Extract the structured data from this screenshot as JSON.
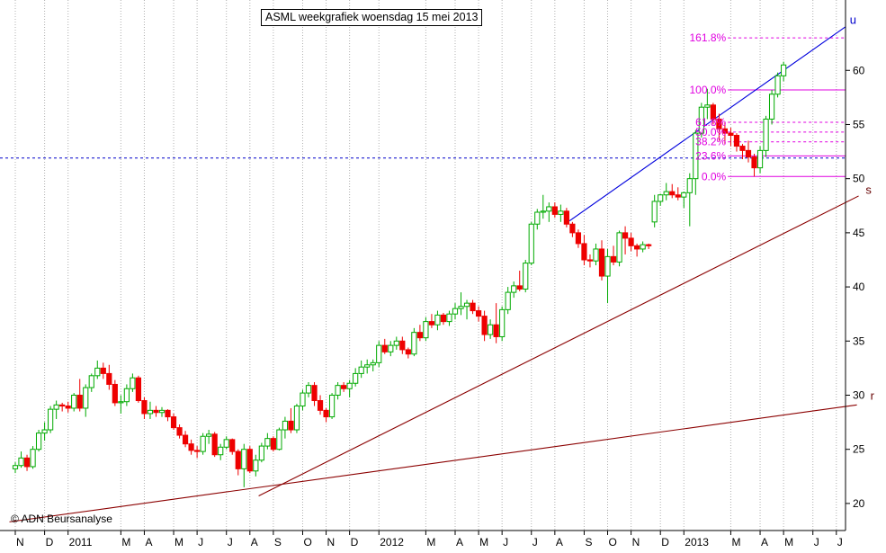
{
  "chart_data": {
    "type": "candlestick",
    "title": "ASML weekgrafiek woensdag 15 mei 2013",
    "copyright": "© ADN Beursanalyse",
    "ylim": [
      17.5,
      66.5
    ],
    "y_ticks": [
      20,
      25,
      30,
      35,
      40,
      45,
      50,
      55,
      60
    ],
    "x_ticks": [
      "N",
      "D",
      "2011",
      "M",
      "A",
      "M",
      "J",
      "J",
      "A",
      "S",
      "O",
      "N",
      "D",
      "2012",
      "M",
      "A",
      "M",
      "J",
      "J",
      "A",
      "S",
      "O",
      "N",
      "D",
      "2013",
      "M",
      "A",
      "M",
      "J",
      "J"
    ],
    "x_tick_weeks": [
      0,
      5,
      9,
      18,
      22,
      27,
      31,
      36,
      40,
      44,
      49,
      53,
      57,
      62,
      70,
      75,
      79,
      83,
      88,
      92,
      97,
      101,
      105,
      110,
      114,
      122,
      127,
      131,
      136,
      140
    ],
    "grid": true,
    "horizontal_level": 51.9,
    "up_color": "#00aa00",
    "down_color": "#ee0000",
    "candles_week_start": 0,
    "candles": [
      [
        23.2,
        23.8,
        22.8,
        23.5
      ],
      [
        23.5,
        24.8,
        23.3,
        24.2
      ],
      [
        24.2,
        24.5,
        23.0,
        23.4
      ],
      [
        23.4,
        25.3,
        23.2,
        25.0
      ],
      [
        25.0,
        26.8,
        24.8,
        26.5
      ],
      [
        26.5,
        27.5,
        25.8,
        26.8
      ],
      [
        26.8,
        29.0,
        26.5,
        28.7
      ],
      [
        28.7,
        29.5,
        27.8,
        29.1
      ],
      [
        29.1,
        29.3,
        28.5,
        29.0
      ],
      [
        29.0,
        29.4,
        28.4,
        28.8
      ],
      [
        28.8,
        30.2,
        28.5,
        30.0
      ],
      [
        30.0,
        31.5,
        28.5,
        28.8
      ],
      [
        28.8,
        31.0,
        28.0,
        30.7
      ],
      [
        30.7,
        32.0,
        30.3,
        31.8
      ],
      [
        31.8,
        33.2,
        31.5,
        32.5
      ],
      [
        32.5,
        33.0,
        31.5,
        32.0
      ],
      [
        32.0,
        32.8,
        30.5,
        31.0
      ],
      [
        31.0,
        31.4,
        29.0,
        29.3
      ],
      [
        29.3,
        30.0,
        28.3,
        29.4
      ],
      [
        29.4,
        31.0,
        29.0,
        30.6
      ],
      [
        30.6,
        32.0,
        30.3,
        31.6
      ],
      [
        31.6,
        31.8,
        29.3,
        29.5
      ],
      [
        29.5,
        29.8,
        27.8,
        28.3
      ],
      [
        28.3,
        29.4,
        27.8,
        28.6
      ],
      [
        28.6,
        29.0,
        28.0,
        28.4
      ],
      [
        28.4,
        28.9,
        28.0,
        28.6
      ],
      [
        28.6,
        28.7,
        27.6,
        28.0
      ],
      [
        28.0,
        28.3,
        26.8,
        27.0
      ],
      [
        27.0,
        27.3,
        26.0,
        26.3
      ],
      [
        26.3,
        26.7,
        25.2,
        25.5
      ],
      [
        25.5,
        25.9,
        24.5,
        24.9
      ],
      [
        24.9,
        25.3,
        24.2,
        24.8
      ],
      [
        24.8,
        26.5,
        24.5,
        26.2
      ],
      [
        26.2,
        26.8,
        25.5,
        26.4
      ],
      [
        26.4,
        26.6,
        24.3,
        24.5
      ],
      [
        24.5,
        25.5,
        24.0,
        25.2
      ],
      [
        25.2,
        26.2,
        25.0,
        25.9
      ],
      [
        25.9,
        26.0,
        24.5,
        24.8
      ],
      [
        24.8,
        25.0,
        22.6,
        23.2
      ],
      [
        23.2,
        25.5,
        21.5,
        25.0
      ],
      [
        25.0,
        25.3,
        22.8,
        23.0
      ],
      [
        23.0,
        24.5,
        22.5,
        24.0
      ],
      [
        24.0,
        25.6,
        23.8,
        25.3
      ],
      [
        25.3,
        26.5,
        25.0,
        26.0
      ],
      [
        26.0,
        26.2,
        24.8,
        25.0
      ],
      [
        25.0,
        27.0,
        24.9,
        26.8
      ],
      [
        26.8,
        28.0,
        26.0,
        27.6
      ],
      [
        27.6,
        28.8,
        26.5,
        26.8
      ],
      [
        26.8,
        29.2,
        26.5,
        29.0
      ],
      [
        29.0,
        30.5,
        28.6,
        30.2
      ],
      [
        30.2,
        31.2,
        29.8,
        30.9
      ],
      [
        30.9,
        31.2,
        29.0,
        29.5
      ],
      [
        29.5,
        30.0,
        28.2,
        28.6
      ],
      [
        28.6,
        28.8,
        27.5,
        28.0
      ],
      [
        28.0,
        30.2,
        27.8,
        30.0
      ],
      [
        30.0,
        31.2,
        29.6,
        30.9
      ],
      [
        30.9,
        31.2,
        30.3,
        30.6
      ],
      [
        30.6,
        31.4,
        29.8,
        31.1
      ],
      [
        31.1,
        32.5,
        30.8,
        32.0
      ],
      [
        32.0,
        33.2,
        31.6,
        32.6
      ],
      [
        32.6,
        33.3,
        32.0,
        32.8
      ],
      [
        32.8,
        33.3,
        32.2,
        33.0
      ],
      [
        33.0,
        35.0,
        32.6,
        34.6
      ],
      [
        34.6,
        35.2,
        33.8,
        34.0
      ],
      [
        34.0,
        35.0,
        33.6,
        34.6
      ],
      [
        34.6,
        35.4,
        34.2,
        35.0
      ],
      [
        35.0,
        35.4,
        33.8,
        34.2
      ],
      [
        34.2,
        34.4,
        33.4,
        33.8
      ],
      [
        33.8,
        36.2,
        33.6,
        35.8
      ],
      [
        35.8,
        36.5,
        35.0,
        35.3
      ],
      [
        35.3,
        37.2,
        35.0,
        36.8
      ],
      [
        36.8,
        37.5,
        36.2,
        36.5
      ],
      [
        36.5,
        37.8,
        36.0,
        37.4
      ],
      [
        37.4,
        37.6,
        36.5,
        36.8
      ],
      [
        36.8,
        37.8,
        36.4,
        37.5
      ],
      [
        37.5,
        38.5,
        37.0,
        38.0
      ],
      [
        38.0,
        39.5,
        37.4,
        38.2
      ],
      [
        38.2,
        38.8,
        37.0,
        38.5
      ],
      [
        38.5,
        38.8,
        37.5,
        37.8
      ],
      [
        37.8,
        38.2,
        36.8,
        37.3
      ],
      [
        37.3,
        37.8,
        35.0,
        35.6
      ],
      [
        35.6,
        37.0,
        35.2,
        36.5
      ],
      [
        36.5,
        38.5,
        34.8,
        35.4
      ],
      [
        35.4,
        38.2,
        35.0,
        37.9
      ],
      [
        37.9,
        40.0,
        37.5,
        39.5
      ],
      [
        39.5,
        40.5,
        39.0,
        40.1
      ],
      [
        40.1,
        41.5,
        39.6,
        39.8
      ],
      [
        39.8,
        42.5,
        39.5,
        42.2
      ],
      [
        42.2,
        46.0,
        42.0,
        45.8
      ],
      [
        45.8,
        47.2,
        45.3,
        46.9
      ],
      [
        46.9,
        48.5,
        46.3,
        47.0
      ],
      [
        47.0,
        47.8,
        46.0,
        47.4
      ],
      [
        47.4,
        47.8,
        46.4,
        46.7
      ],
      [
        46.7,
        47.6,
        46.0,
        47.0
      ],
      [
        47.0,
        47.3,
        45.5,
        45.8
      ],
      [
        45.8,
        46.0,
        44.6,
        45.0
      ],
      [
        45.0,
        45.3,
        43.6,
        44.0
      ],
      [
        44.0,
        44.8,
        42.0,
        42.5
      ],
      [
        42.5,
        43.0,
        41.8,
        42.4
      ],
      [
        42.4,
        44.0,
        42.0,
        43.5
      ],
      [
        43.5,
        44.3,
        40.6,
        41.0
      ],
      [
        41.0,
        43.5,
        38.5,
        42.8
      ],
      [
        42.8,
        43.8,
        42.0,
        42.3
      ],
      [
        42.3,
        45.2,
        41.9,
        45.0
      ],
      [
        45.0,
        45.6,
        43.0,
        44.5
      ],
      [
        44.5,
        45.0,
        43.3,
        43.8
      ],
      [
        43.8,
        44.0,
        42.8,
        43.5
      ],
      [
        43.5,
        44.2,
        43.2,
        43.9
      ],
      [
        43.9,
        44.0,
        43.5,
        43.8
      ],
      [
        46.0,
        48.5,
        45.5,
        47.9
      ],
      [
        47.9,
        48.6,
        47.5,
        48.5
      ],
      [
        48.5,
        49.6,
        48.0,
        48.8
      ],
      [
        48.8,
        49.5,
        48.2,
        48.5
      ],
      [
        48.5,
        49.2,
        48.0,
        48.3
      ],
      [
        48.3,
        48.8,
        47.3,
        48.7
      ],
      [
        48.7,
        50.5,
        45.6,
        50.0
      ],
      [
        50.0,
        54.5,
        48.5,
        54.2
      ],
      [
        54.2,
        57.0,
        53.8,
        56.6
      ],
      [
        56.6,
        58.3,
        55.5,
        56.8
      ],
      [
        56.8,
        57.0,
        55.0,
        55.5
      ],
      [
        55.5,
        56.0,
        53.5,
        54.6
      ],
      [
        54.6,
        55.2,
        53.2,
        54.2
      ],
      [
        54.2,
        54.7,
        53.0,
        54.0
      ],
      [
        54.0,
        54.2,
        52.5,
        53.0
      ],
      [
        53.0,
        53.2,
        51.8,
        52.6
      ],
      [
        52.6,
        53.5,
        51.5,
        52.0
      ],
      [
        52.0,
        52.3,
        50.2,
        51.0
      ],
      [
        51.0,
        53.0,
        50.5,
        52.6
      ],
      [
        52.6,
        55.8,
        52.0,
        55.5
      ],
      [
        55.5,
        58.2,
        55.0,
        57.8
      ],
      [
        57.8,
        59.8,
        57.5,
        59.5
      ],
      [
        59.5,
        60.8,
        59.0,
        60.5
      ]
    ],
    "trendlines": [
      {
        "name": "u",
        "x1": 94.5,
        "y1": 46.1,
        "x2": 141.5,
        "y2": 64.0,
        "color": "#0000dd"
      },
      {
        "name": "s",
        "x1": 41.5,
        "y1": 20.7,
        "x2": 143.8,
        "y2": 48.4,
        "color": "#8b0000"
      },
      {
        "name": "r",
        "x1": -1.0,
        "y1": 18.3,
        "x2": 143.5,
        "y2": 29.1,
        "color": "#8b0000"
      }
    ],
    "trendline_labels": [
      {
        "text": "u",
        "x": 142.3,
        "y": 64.3,
        "color": "#0000cc"
      },
      {
        "text": "s",
        "x": 145.0,
        "y": 48.6,
        "color": "#660000"
      },
      {
        "text": "r",
        "x": 145.8,
        "y": 29.6,
        "color": "#660000"
      }
    ],
    "fibonacci_x_start": 121.5,
    "fibonacci_color": "#e000e0",
    "fibonacci_levels": [
      {
        "label": "161.8%",
        "value": 63.0,
        "style": "dashed"
      },
      {
        "label": "100.0%",
        "value": 58.2,
        "style": "solid"
      },
      {
        "label": "61.8%",
        "value": 55.2,
        "style": "dashed"
      },
      {
        "label": "50.0%",
        "value": 54.3,
        "style": "dashed"
      },
      {
        "label": "38.2%",
        "value": 53.4,
        "style": "dashed"
      },
      {
        "label": "23.6%",
        "value": 52.1,
        "style": "solid"
      },
      {
        "label": "0.0%",
        "value": 50.2,
        "style": "solid"
      }
    ]
  }
}
